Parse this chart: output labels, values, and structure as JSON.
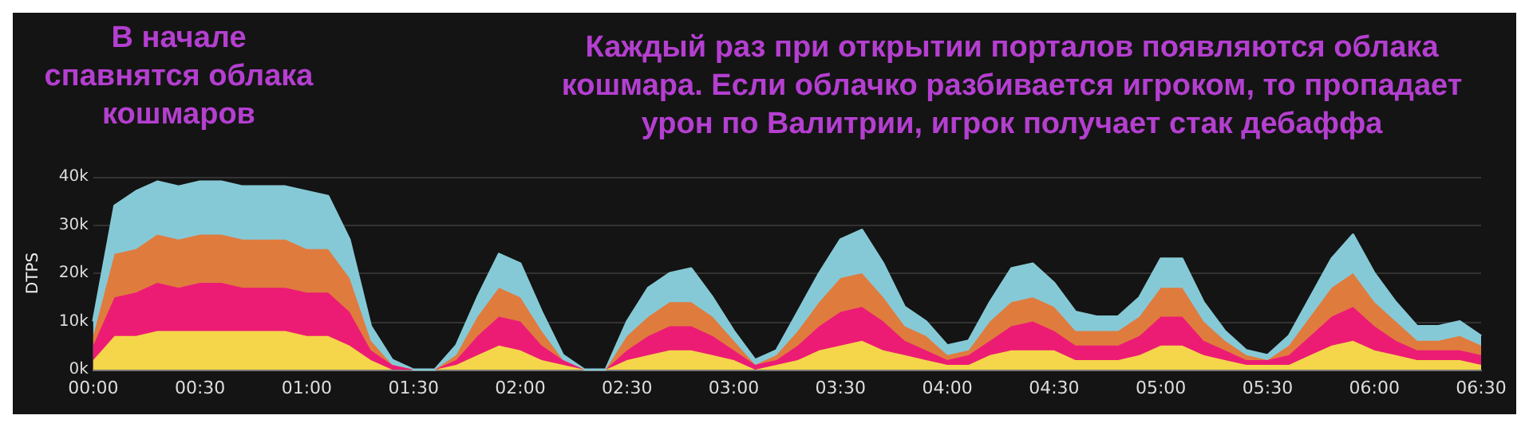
{
  "chart_data": {
    "type": "area",
    "stacked": true,
    "annotations": [
      "В начале\nспавнятся облака\nкошмаров",
      "Каждый раз при открытии порталов появляются облака\nкошмара. Если облачко разбивается игроком, то пропадает\nурон по Валитрии, игрок получает стак дебаффа"
    ],
    "ylabel": "DTPS",
    "x": [
      0,
      0.1,
      0.2,
      0.3,
      0.4,
      0.5,
      0.6,
      0.7,
      0.8,
      0.9,
      1,
      1.1,
      1.2,
      1.3,
      1.4,
      1.5,
      1.6,
      1.7,
      1.8,
      1.9,
      2,
      2.1,
      2.2,
      2.3,
      2.4,
      2.5,
      2.6,
      2.7,
      2.8,
      2.9,
      3,
      3.1,
      3.2,
      3.3,
      3.4,
      3.5,
      3.6,
      3.7,
      3.8,
      3.9,
      4,
      4.1,
      4.2,
      4.3,
      4.4,
      4.5,
      4.6,
      4.7,
      4.8,
      4.9,
      5,
      5.1,
      5.2,
      5.3,
      5.4,
      5.5,
      5.6,
      5.7,
      5.8,
      5.9,
      6,
      6.1,
      6.2,
      6.3,
      6.4,
      6.5
    ],
    "series": [
      {
        "color": "#f5d64a",
        "values": [
          2000,
          7000,
          7000,
          8000,
          8000,
          8000,
          8000,
          8000,
          8000,
          8000,
          7000,
          7000,
          5000,
          2000,
          0,
          0,
          0,
          1000,
          3000,
          5000,
          4000,
          2000,
          1000,
          0,
          0,
          2000,
          3000,
          4000,
          4000,
          3000,
          2000,
          0,
          1000,
          2000,
          4000,
          5000,
          6000,
          4000,
          3000,
          2000,
          1000,
          1000,
          3000,
          4000,
          4000,
          4000,
          2000,
          2000,
          2000,
          3000,
          5000,
          5000,
          3000,
          2000,
          1000,
          1000,
          1000,
          3000,
          5000,
          6000,
          4000,
          3000,
          2000,
          2000,
          2000,
          1000
        ]
      },
      {
        "color": "#ec1c74",
        "values": [
          3000,
          8000,
          9000,
          10000,
          9000,
          10000,
          10000,
          9000,
          9000,
          9000,
          9000,
          9000,
          7000,
          2000,
          1000,
          0,
          0,
          1000,
          4000,
          6000,
          6000,
          3000,
          1000,
          0,
          0,
          2000,
          4000,
          5000,
          5000,
          4000,
          2000,
          1000,
          1000,
          3000,
          5000,
          7000,
          7000,
          6000,
          3000,
          2000,
          1000,
          2000,
          3000,
          5000,
          6000,
          4000,
          3000,
          3000,
          3000,
          4000,
          6000,
          6000,
          3000,
          2000,
          1000,
          1000,
          2000,
          4000,
          6000,
          7000,
          5000,
          3000,
          2000,
          2000,
          2000,
          2000
        ]
      },
      {
        "color": "#e07b3e",
        "values": [
          2000,
          9000,
          9000,
          10000,
          10000,
          10000,
          10000,
          10000,
          10000,
          10000,
          9000,
          9000,
          7000,
          2000,
          0,
          0,
          0,
          1000,
          4000,
          6000,
          5000,
          3000,
          0,
          0,
          0,
          3000,
          4000,
          5000,
          5000,
          4000,
          2000,
          0,
          1000,
          3000,
          5000,
          7000,
          7000,
          5000,
          3000,
          3000,
          1000,
          1000,
          4000,
          5000,
          5000,
          5000,
          3000,
          3000,
          3000,
          4000,
          6000,
          6000,
          4000,
          2000,
          1000,
          0,
          2000,
          4000,
          6000,
          7000,
          5000,
          4000,
          2000,
          2000,
          3000,
          2000
        ]
      },
      {
        "color": "#86c9d6",
        "values": [
          3000,
          10000,
          12000,
          11000,
          11000,
          11000,
          11000,
          11000,
          11000,
          11000,
          12000,
          11000,
          8000,
          3000,
          1000,
          0,
          0,
          2000,
          4000,
          7000,
          7000,
          4000,
          1000,
          0,
          0,
          3000,
          6000,
          6000,
          7000,
          4000,
          2000,
          1000,
          1000,
          4000,
          6000,
          8000,
          9000,
          7000,
          4000,
          3000,
          2000,
          2000,
          4000,
          7000,
          7000,
          5000,
          4000,
          3000,
          3000,
          4000,
          6000,
          6000,
          4000,
          2000,
          1000,
          1000,
          2000,
          4000,
          6000,
          8000,
          6000,
          4000,
          3000,
          3000,
          3000,
          2000
        ]
      }
    ],
    "xlim": [
      0,
      6.5
    ],
    "xticks": [
      {
        "value": 0,
        "label": "00:00"
      },
      {
        "value": 0.5,
        "label": "00:30"
      },
      {
        "value": 1,
        "label": "01:00"
      },
      {
        "value": 1.5,
        "label": "01:30"
      },
      {
        "value": 2,
        "label": "02:00"
      },
      {
        "value": 2.5,
        "label": "02:30"
      },
      {
        "value": 3,
        "label": "03:00"
      },
      {
        "value": 3.5,
        "label": "03:30"
      },
      {
        "value": 4,
        "label": "04:00"
      },
      {
        "value": 4.5,
        "label": "04:30"
      },
      {
        "value": 5,
        "label": "05:00"
      },
      {
        "value": 5.5,
        "label": "05:30"
      },
      {
        "value": 6,
        "label": "06:00"
      },
      {
        "value": 6.5,
        "label": "06:30"
      }
    ],
    "ylim": [
      0,
      40000
    ],
    "yticks": [
      {
        "value": 0,
        "label": "0k"
      },
      {
        "value": 10000,
        "label": "10k"
      },
      {
        "value": 20000,
        "label": "20k"
      },
      {
        "value": 30000,
        "label": "30k"
      },
      {
        "value": 40000,
        "label": "40k"
      }
    ],
    "grid": "y"
  }
}
